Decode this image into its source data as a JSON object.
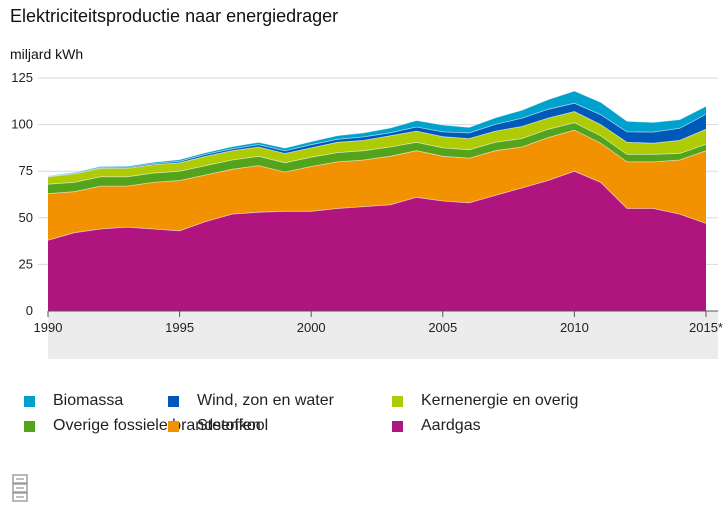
{
  "chart_data": {
    "type": "area",
    "stacked": true,
    "title": "Elektriciteitsproductie naar energiedrager",
    "ylabel": "miljard kWh",
    "ylim": [
      0,
      125
    ],
    "yticks": [
      0,
      25,
      50,
      75,
      100,
      125
    ],
    "xlim": [
      1990,
      2015
    ],
    "xticks": [
      "1990",
      "1995",
      "2000",
      "2005",
      "2010",
      "2015*"
    ],
    "x": [
      1990,
      1991,
      1992,
      1993,
      1994,
      1995,
      1996,
      1997,
      1998,
      1999,
      2000,
      2001,
      2002,
      2003,
      2004,
      2005,
      2006,
      2007,
      2008,
      2009,
      2010,
      2011,
      2012,
      2013,
      2014,
      2015
    ],
    "grid": true,
    "legend_position": "bottom",
    "series": [
      {
        "name": "Aardgas",
        "color": "#b0157f",
        "values": [
          38,
          42,
          44,
          45,
          44,
          43,
          48,
          52,
          53,
          53.5,
          53.5,
          55,
          56,
          57,
          61,
          59,
          58,
          62,
          66,
          70,
          75,
          69,
          55,
          55,
          52,
          47
        ]
      },
      {
        "name": "Steenkool",
        "color": "#f39200",
        "values": [
          25,
          22,
          23,
          22,
          25,
          27,
          25,
          24,
          25,
          21,
          24,
          25,
          25,
          26,
          25,
          24,
          24,
          24,
          22,
          23,
          22,
          21,
          25,
          25,
          29,
          39
        ]
      },
      {
        "name": "Overige fossiele brandstoffen",
        "color": "#53a31d",
        "values": [
          5,
          5,
          5,
          5,
          5,
          5,
          5,
          5,
          5,
          5,
          5,
          5,
          5,
          5,
          4.5,
          4.5,
          4.5,
          4.5,
          4.5,
          4.5,
          4,
          4,
          4,
          4,
          3.5,
          3.5
        ]
      },
      {
        "name": "Kernenergie en overig",
        "color": "#afcb05",
        "values": [
          4,
          4.5,
          4.5,
          4.5,
          4.5,
          4.5,
          5,
          5,
          5,
          5,
          5,
          5.5,
          5.5,
          6,
          6,
          6,
          6,
          6,
          6.5,
          6,
          6,
          6,
          6.5,
          6,
          7,
          8
        ]
      },
      {
        "name": "Wind, zon en water",
        "color": "#0058b8",
        "values": [
          0.2,
          0.3,
          0.4,
          0.5,
          0.6,
          0.8,
          1,
          1,
          1.2,
          1.4,
          1.7,
          1.6,
          1.9,
          1.6,
          2.2,
          2.6,
          3,
          3.6,
          4.4,
          4.7,
          4.5,
          5.3,
          5.6,
          6,
          6.5,
          8
        ]
      },
      {
        "name": "Biomassa",
        "color": "#00a1cd",
        "values": [
          0.3,
          0.5,
          0.6,
          0.6,
          0.7,
          0.9,
          1,
          1.2,
          1.3,
          1.5,
          1.7,
          2,
          2.2,
          2.6,
          3.5,
          3.7,
          3,
          3.6,
          4.3,
          5.2,
          6.5,
          6.7,
          5.7,
          5.2,
          4.7,
          4.3
        ]
      }
    ],
    "legend_order": [
      "Biomassa",
      "Wind, zon en water",
      "Kernenergie en overig",
      "Overige fossiele brandstoffen",
      "Steenkool",
      "Aardgas"
    ]
  }
}
